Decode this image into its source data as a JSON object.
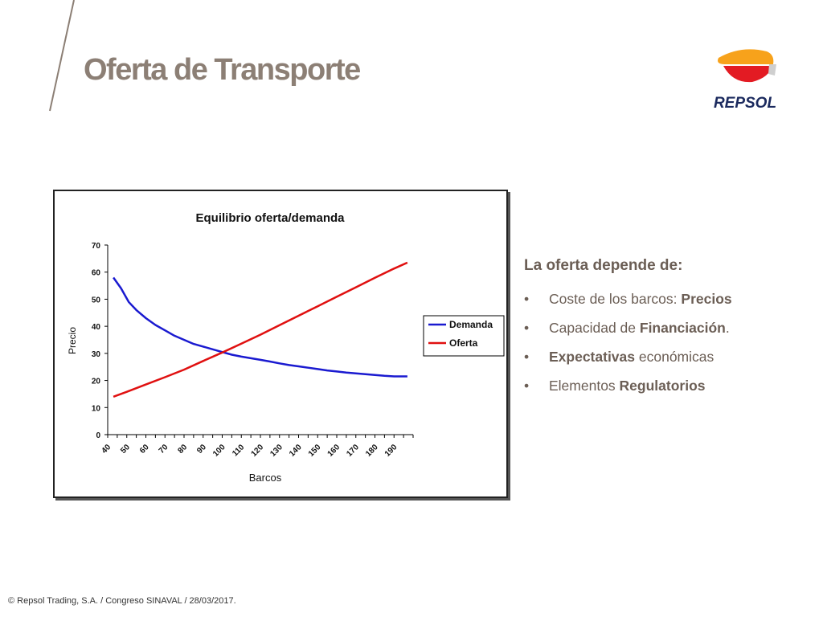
{
  "slide": {
    "title": "Oferta de Transporte",
    "footer": "© Repsol Trading, S.A. /  Congreso SINAVAL / 28/03/2017."
  },
  "logo": {
    "text": "REPSOL",
    "colors": {
      "orange": "#f7a21b",
      "red": "#e31b23",
      "navy": "#1b2a5e"
    }
  },
  "right_panel": {
    "heading": "La oferta depende de:",
    "bullet": "•",
    "items": [
      {
        "pre": "Coste de los barcos: ",
        "bold": "Precios",
        "post": ""
      },
      {
        "pre": "Capacidad de ",
        "bold": "Financiación",
        "post": "."
      },
      {
        "pre": "",
        "bold": "Expectativas",
        "post": " económicas"
      },
      {
        "pre": "Elementos ",
        "bold": "Regulatorios",
        "post": ""
      }
    ]
  },
  "chart_data": {
    "type": "line",
    "title": "Equilibrio oferta/demanda",
    "xlabel": "Barcos",
    "ylabel": "Precio",
    "x_ticks": [
      40,
      50,
      60,
      70,
      80,
      90,
      100,
      110,
      120,
      130,
      140,
      150,
      160,
      170,
      180,
      190
    ],
    "y_ticks": [
      0,
      10,
      20,
      30,
      40,
      50,
      60,
      70
    ],
    "ylim": [
      0,
      70
    ],
    "xlim": [
      40,
      200
    ],
    "grid": false,
    "legend_position": "right",
    "series": [
      {
        "name": "Demanda",
        "color": "#1a1ad0",
        "points": [
          [
            43,
            58
          ],
          [
            47,
            54
          ],
          [
            51,
            49
          ],
          [
            55,
            46
          ],
          [
            60,
            43
          ],
          [
            65,
            40.5
          ],
          [
            70,
            38.5
          ],
          [
            75,
            36.5
          ],
          [
            80,
            35
          ],
          [
            85,
            33.5
          ],
          [
            90,
            32.5
          ],
          [
            95,
            31.5
          ],
          [
            100,
            30.5
          ],
          [
            105,
            29.5
          ],
          [
            110,
            28.8
          ],
          [
            115,
            28.2
          ],
          [
            120,
            27.6
          ],
          [
            125,
            27
          ],
          [
            130,
            26.3
          ],
          [
            135,
            25.7
          ],
          [
            140,
            25.2
          ],
          [
            145,
            24.7
          ],
          [
            150,
            24.2
          ],
          [
            155,
            23.7
          ],
          [
            160,
            23.3
          ],
          [
            165,
            22.9
          ],
          [
            170,
            22.6
          ],
          [
            175,
            22.3
          ],
          [
            180,
            22
          ],
          [
            185,
            21.7
          ],
          [
            190,
            21.5
          ],
          [
            197,
            21.5
          ]
        ]
      },
      {
        "name": "Oferta",
        "color": "#e01010",
        "points": [
          [
            43,
            14
          ],
          [
            50,
            15.8
          ],
          [
            60,
            18.5
          ],
          [
            70,
            21.2
          ],
          [
            80,
            24
          ],
          [
            90,
            27.2
          ],
          [
            100,
            30.3
          ],
          [
            110,
            33.6
          ],
          [
            120,
            36.9
          ],
          [
            130,
            40.4
          ],
          [
            140,
            43.9
          ],
          [
            150,
            47.4
          ],
          [
            160,
            50.9
          ],
          [
            170,
            54.4
          ],
          [
            180,
            57.9
          ],
          [
            190,
            61.3
          ],
          [
            197,
            63.5
          ]
        ]
      }
    ]
  }
}
